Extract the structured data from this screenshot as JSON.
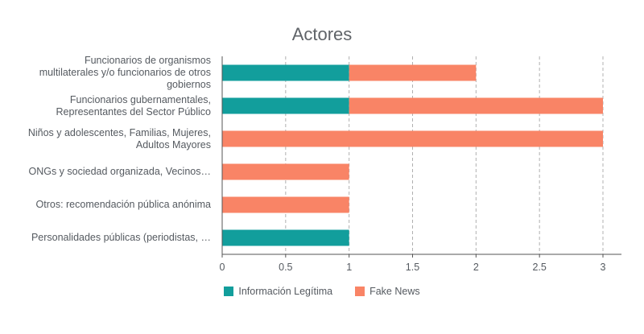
{
  "chart_data": {
    "type": "bar",
    "orientation": "horizontal",
    "stacked": true,
    "title": "Actores",
    "categories": [
      [
        "Funcionarios de organismos",
        "multilaterales y/o funcionarios de otros",
        "gobiernos"
      ],
      [
        "Funcionarios gubernamentales,",
        "Representantes del Sector Público"
      ],
      [
        "Niños y adolescentes, Familias, Mujeres,",
        "Adultos Mayores"
      ],
      [
        "ONGs y sociedad organizada, Vecinos…"
      ],
      [
        "Otros: recomendación pública anónima"
      ],
      [
        "Personalidades públicas (periodistas, …"
      ]
    ],
    "series": [
      {
        "name": "Información Legítima",
        "color": "#129e9c",
        "values": [
          1,
          1,
          0,
          0,
          0,
          1
        ]
      },
      {
        "name": "Fake News",
        "color": "#f98466",
        "values": [
          1,
          2,
          3,
          1,
          1,
          0
        ]
      }
    ],
    "xlim": [
      0,
      3
    ],
    "xticks": [
      "0",
      "0.5",
      "1",
      "1.5",
      "2",
      "2.5",
      "3"
    ],
    "grid": "vertical dashed",
    "legend_position": "bottom"
  }
}
